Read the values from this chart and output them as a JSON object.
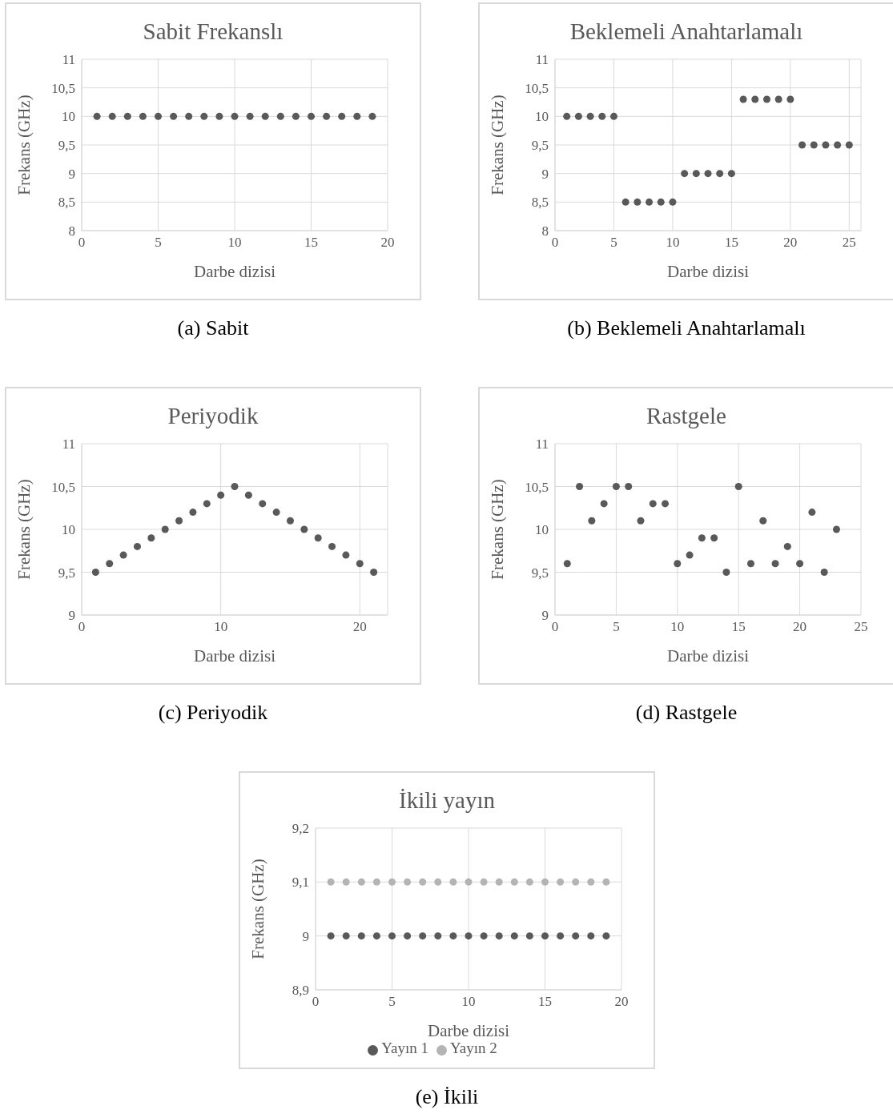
{
  "chart_data": [
    {
      "type": "scatter",
      "title": "Sabit Frekanslı",
      "xlabel": "Darbe dizisi",
      "ylabel": "Frekans (GHz)",
      "annotations": [
        "(a) Sabit"
      ],
      "marker": "circle",
      "grid": true,
      "x": [
        1,
        2,
        3,
        4,
        5,
        6,
        7,
        8,
        9,
        10,
        11,
        12,
        13,
        14,
        15,
        16,
        17,
        18,
        19
      ],
      "series": [
        {
          "color": "#595959",
          "values": [
            10,
            10,
            10,
            10,
            10,
            10,
            10,
            10,
            10,
            10,
            10,
            10,
            10,
            10,
            10,
            10,
            10,
            10,
            10
          ]
        }
      ],
      "xlim": [
        0,
        20
      ],
      "xticks": [
        0,
        5,
        10,
        15,
        20
      ],
      "ylim": [
        8,
        11
      ],
      "yticks": [
        8,
        {
          "value": 8.5,
          "label": "8,5"
        },
        9,
        {
          "value": 9.5,
          "label": "9,5"
        },
        10,
        {
          "value": 10.5,
          "label": "10,5"
        },
        11
      ]
    },
    {
      "type": "scatter",
      "title": "Beklemeli Anahtarlamalı",
      "xlabel": "Darbe dizisi",
      "ylabel": "Frekans (GHz)",
      "annotations": [
        "(b) Beklemeli Anahtarlamalı"
      ],
      "marker": "circle",
      "grid": true,
      "x": [
        1,
        2,
        3,
        4,
        5,
        6,
        7,
        8,
        9,
        10,
        11,
        12,
        13,
        14,
        15,
        16,
        17,
        18,
        19,
        20,
        21,
        22,
        23,
        24,
        25
      ],
      "series": [
        {
          "color": "#595959",
          "values": [
            10,
            10,
            10,
            10,
            10,
            8.5,
            8.5,
            8.5,
            8.5,
            8.5,
            9,
            9,
            9,
            9,
            9,
            10.3,
            10.3,
            10.3,
            10.3,
            10.3,
            9.5,
            9.5,
            9.5,
            9.5,
            9.5
          ]
        }
      ],
      "xlim": [
        0,
        26
      ],
      "xticks": [
        0,
        5,
        10,
        15,
        20,
        25
      ],
      "ylim": [
        8,
        11
      ],
      "yticks": [
        8,
        {
          "value": 8.5,
          "label": "8,5"
        },
        9,
        {
          "value": 9.5,
          "label": "9,5"
        },
        10,
        {
          "value": 10.5,
          "label": "10,5"
        },
        11
      ]
    },
    {
      "type": "scatter",
      "title": "Periyodik",
      "xlabel": "Darbe dizisi",
      "ylabel": "Frekans (GHz)",
      "annotations": [
        "(c) Periyodik"
      ],
      "marker": "circle",
      "grid": true,
      "x": [
        1,
        2,
        3,
        4,
        5,
        6,
        7,
        8,
        9,
        10,
        11,
        12,
        13,
        14,
        15,
        16,
        17,
        18,
        19,
        20,
        21
      ],
      "series": [
        {
          "color": "#595959",
          "values": [
            9.5,
            9.6,
            9.7,
            9.8,
            9.9,
            10,
            10.1,
            10.2,
            10.3,
            10.4,
            10.5,
            10.4,
            10.3,
            10.2,
            10.1,
            10,
            9.9,
            9.8,
            9.7,
            9.6,
            9.5
          ]
        }
      ],
      "xlim": [
        0,
        22
      ],
      "xticks": [
        0,
        10,
        20
      ],
      "ylim": [
        9,
        11
      ],
      "yticks": [
        9,
        {
          "value": 9.5,
          "label": "9,5"
        },
        10,
        {
          "value": 10.5,
          "label": "10,5"
        },
        11
      ]
    },
    {
      "type": "scatter",
      "title": "Rastgele",
      "xlabel": "Darbe dizisi",
      "ylabel": "Frekans (GHz)",
      "annotations": [
        "(d) Rastgele"
      ],
      "marker": "circle",
      "grid": true,
      "x": [
        1,
        2,
        3,
        4,
        5,
        6,
        7,
        8,
        9,
        10,
        11,
        12,
        13,
        14,
        15,
        16,
        17,
        18,
        19,
        20,
        21,
        22,
        23
      ],
      "series": [
        {
          "color": "#595959",
          "values": [
            9.6,
            10.5,
            10.1,
            10.3,
            10.5,
            10.5,
            10.1,
            10.3,
            10.3,
            9.6,
            9.7,
            9.9,
            9.9,
            9.5,
            10.5,
            9.6,
            10.1,
            9.6,
            9.8,
            9.6,
            10.2,
            9.5,
            10
          ]
        }
      ],
      "xlim": [
        0,
        25
      ],
      "xticks": [
        0,
        5,
        10,
        15,
        20,
        25
      ],
      "ylim": [
        9,
        11
      ],
      "yticks": [
        9,
        {
          "value": 9.5,
          "label": "9,5"
        },
        10,
        {
          "value": 10.5,
          "label": "10,5"
        },
        11
      ]
    },
    {
      "type": "scatter",
      "title": "İkili yayın",
      "xlabel": "Darbe dizisi",
      "ylabel": "Frekans (GHz)",
      "annotations": [
        "(e) İkili"
      ],
      "marker": "circle",
      "grid": true,
      "legend": "bottom",
      "x": [
        1,
        2,
        3,
        4,
        5,
        6,
        7,
        8,
        9,
        10,
        11,
        12,
        13,
        14,
        15,
        16,
        17,
        18,
        19
      ],
      "series": [
        {
          "name": "Yayın 1",
          "color": "#595959",
          "values": [
            9,
            9,
            9,
            9,
            9,
            9,
            9,
            9,
            9,
            9,
            9,
            9,
            9,
            9,
            9,
            9,
            9,
            9,
            9
          ]
        },
        {
          "name": "Yayın 2",
          "color": "#b4b4b4",
          "values": [
            9.1,
            9.1,
            9.1,
            9.1,
            9.1,
            9.1,
            9.1,
            9.1,
            9.1,
            9.1,
            9.1,
            9.1,
            9.1,
            9.1,
            9.1,
            9.1,
            9.1,
            9.1,
            9.1
          ]
        }
      ],
      "xlim": [
        0,
        20
      ],
      "xticks": [
        0,
        5,
        10,
        15,
        20
      ],
      "ylim": [
        8.9,
        9.2
      ],
      "yticks": [
        {
          "value": 8.9,
          "label": "8,9"
        },
        9,
        {
          "value": 9.1,
          "label": "9,1"
        },
        {
          "value": 9.2,
          "label": "9,2"
        }
      ]
    }
  ]
}
